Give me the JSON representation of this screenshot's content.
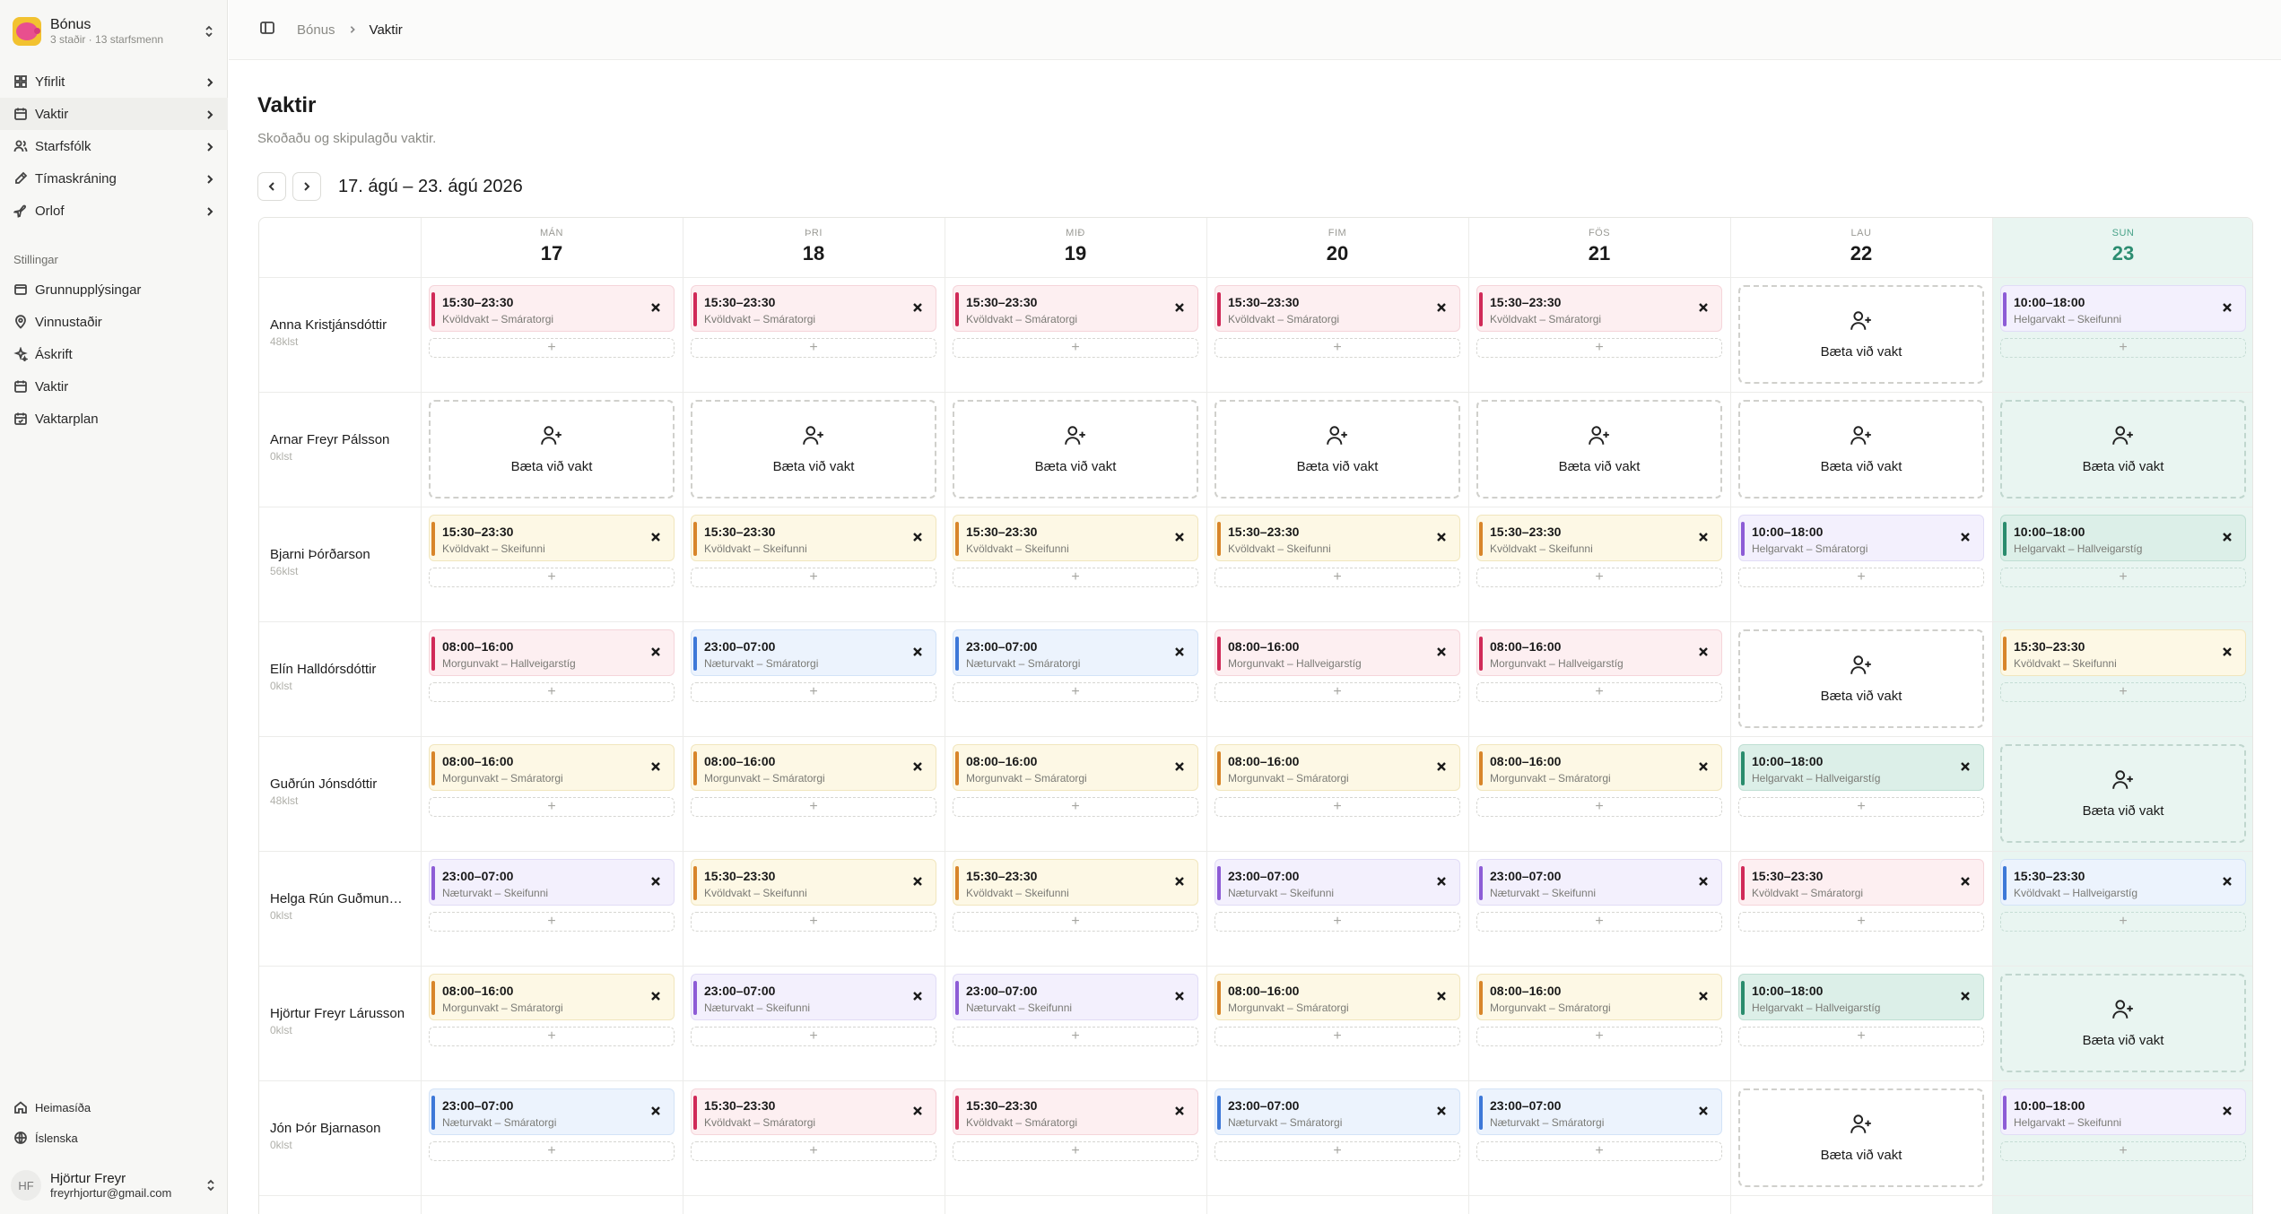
{
  "brand": {
    "name": "Bónus",
    "sub": "3 staðir · 13 starfsmenn"
  },
  "nav": [
    {
      "label": "Yfirlit",
      "icon": "grid-icon",
      "active": false
    },
    {
      "label": "Vaktir",
      "icon": "calendar-icon",
      "active": true
    },
    {
      "label": "Starfsfólk",
      "icon": "users-icon",
      "active": false
    },
    {
      "label": "Tímaskráning",
      "icon": "pen-icon",
      "active": false
    },
    {
      "label": "Orlof",
      "icon": "plane-icon",
      "active": false
    }
  ],
  "settings_label": "Stillingar",
  "settings": [
    {
      "label": "Grunnupplýsingar",
      "icon": "card-icon"
    },
    {
      "label": "Vinnustaðir",
      "icon": "map-pin-icon"
    },
    {
      "label": "Áskrift",
      "icon": "sparkle-icon"
    },
    {
      "label": "Vaktir",
      "icon": "calendar-icon"
    },
    {
      "label": "Vaktarplan",
      "icon": "calendar-check-icon"
    }
  ],
  "footer": [
    {
      "label": "Heimasíða",
      "icon": "home-icon"
    },
    {
      "label": "Íslenska",
      "icon": "globe-icon"
    }
  ],
  "user": {
    "initials": "HF",
    "name": "Hjörtur Freyr",
    "email": "freyrhjortur@gmail.com"
  },
  "breadcrumb": {
    "parent": "Bónus",
    "current": "Vaktir"
  },
  "page": {
    "title": "Vaktir",
    "subtitle": "Skoðaðu og skipulagðu vaktir."
  },
  "week_label": "17. ágú – 23. ágú 2026",
  "add_label": "Bæta við vakt",
  "days": [
    {
      "name": "MÁN",
      "num": "17",
      "today": false
    },
    {
      "name": "ÞRI",
      "num": "18",
      "today": false
    },
    {
      "name": "MIÐ",
      "num": "19",
      "today": false
    },
    {
      "name": "FIM",
      "num": "20",
      "today": false
    },
    {
      "name": "FÖS",
      "num": "21",
      "today": false
    },
    {
      "name": "LAU",
      "num": "22",
      "today": false
    },
    {
      "name": "SUN",
      "num": "23",
      "today": true
    }
  ],
  "employees": [
    {
      "name": "Anna Kristjánsdóttir",
      "hours": "48klst",
      "shifts": [
        {
          "time": "15:30–23:30",
          "label": "Kvöldvakt – Smáratorgi",
          "color": "pink"
        },
        {
          "time": "15:30–23:30",
          "label": "Kvöldvakt – Smáratorgi",
          "color": "pink"
        },
        {
          "time": "15:30–23:30",
          "label": "Kvöldvakt – Smáratorgi",
          "color": "pink"
        },
        {
          "time": "15:30–23:30",
          "label": "Kvöldvakt – Smáratorgi",
          "color": "pink"
        },
        {
          "time": "15:30–23:30",
          "label": "Kvöldvakt – Smáratorgi",
          "color": "pink"
        },
        null,
        {
          "time": "10:00–18:00",
          "label": "Helgarvakt – Skeifunni",
          "color": "purple"
        }
      ]
    },
    {
      "name": "Arnar Freyr Pálsson",
      "hours": "0klst",
      "shifts": [
        null,
        null,
        null,
        null,
        null,
        null,
        null
      ]
    },
    {
      "name": "Bjarni Þórðarson",
      "hours": "56klst",
      "shifts": [
        {
          "time": "15:30–23:30",
          "label": "Kvöldvakt – Skeifunni",
          "color": "yellow"
        },
        {
          "time": "15:30–23:30",
          "label": "Kvöldvakt – Skeifunni",
          "color": "yellow"
        },
        {
          "time": "15:30–23:30",
          "label": "Kvöldvakt – Skeifunni",
          "color": "yellow"
        },
        {
          "time": "15:30–23:30",
          "label": "Kvöldvakt – Skeifunni",
          "color": "yellow"
        },
        {
          "time": "15:30–23:30",
          "label": "Kvöldvakt – Skeifunni",
          "color": "yellow"
        },
        {
          "time": "10:00–18:00",
          "label": "Helgarvakt – Smáratorgi",
          "color": "purple"
        },
        {
          "time": "10:00–18:00",
          "label": "Helgarvakt – Hallveigarstíg",
          "color": "green"
        }
      ]
    },
    {
      "name": "Elín Halldórsdóttir",
      "hours": "0klst",
      "shifts": [
        {
          "time": "08:00–16:00",
          "label": "Morgunvakt – Hallveigarstíg",
          "color": "pink"
        },
        {
          "time": "23:00–07:00",
          "label": "Næturvakt – Smáratorgi",
          "color": "blue"
        },
        {
          "time": "23:00–07:00",
          "label": "Næturvakt – Smáratorgi",
          "color": "blue"
        },
        {
          "time": "08:00–16:00",
          "label": "Morgunvakt – Hallveigarstíg",
          "color": "pink"
        },
        {
          "time": "08:00–16:00",
          "label": "Morgunvakt – Hallveigarstíg",
          "color": "pink"
        },
        null,
        {
          "time": "15:30–23:30",
          "label": "Kvöldvakt – Skeifunni",
          "color": "yellow"
        }
      ]
    },
    {
      "name": "Guðrún Jónsdóttir",
      "hours": "48klst",
      "shifts": [
        {
          "time": "08:00–16:00",
          "label": "Morgunvakt – Smáratorgi",
          "color": "yellow"
        },
        {
          "time": "08:00–16:00",
          "label": "Morgunvakt – Smáratorgi",
          "color": "yellow"
        },
        {
          "time": "08:00–16:00",
          "label": "Morgunvakt – Smáratorgi",
          "color": "yellow"
        },
        {
          "time": "08:00–16:00",
          "label": "Morgunvakt – Smáratorgi",
          "color": "yellow"
        },
        {
          "time": "08:00–16:00",
          "label": "Morgunvakt – Smáratorgi",
          "color": "yellow"
        },
        {
          "time": "10:00–18:00",
          "label": "Helgarvakt – Hallveigarstíg",
          "color": "green"
        },
        null
      ]
    },
    {
      "name": "Helga Rún Guðmundsdóttir",
      "hours": "0klst",
      "shifts": [
        {
          "time": "23:00–07:00",
          "label": "Næturvakt – Skeifunni",
          "color": "purple"
        },
        {
          "time": "15:30–23:30",
          "label": "Kvöldvakt – Skeifunni",
          "color": "yellow"
        },
        {
          "time": "15:30–23:30",
          "label": "Kvöldvakt – Skeifunni",
          "color": "yellow"
        },
        {
          "time": "23:00–07:00",
          "label": "Næturvakt – Skeifunni",
          "color": "purple"
        },
        {
          "time": "23:00–07:00",
          "label": "Næturvakt – Skeifunni",
          "color": "purple"
        },
        {
          "time": "15:30–23:30",
          "label": "Kvöldvakt – Smáratorgi",
          "color": "pink"
        },
        {
          "time": "15:30–23:30",
          "label": "Kvöldvakt – Hallveigarstíg",
          "color": "blue"
        }
      ]
    },
    {
      "name": "Hjörtur Freyr Lárusson",
      "hours": "0klst",
      "shifts": [
        {
          "time": "08:00–16:00",
          "label": "Morgunvakt – Smáratorgi",
          "color": "yellow"
        },
        {
          "time": "23:00–07:00",
          "label": "Næturvakt – Skeifunni",
          "color": "purple"
        },
        {
          "time": "23:00–07:00",
          "label": "Næturvakt – Skeifunni",
          "color": "purple"
        },
        {
          "time": "08:00–16:00",
          "label": "Morgunvakt – Smáratorgi",
          "color": "yellow"
        },
        {
          "time": "08:00–16:00",
          "label": "Morgunvakt – Smáratorgi",
          "color": "yellow"
        },
        {
          "time": "10:00–18:00",
          "label": "Helgarvakt – Hallveigarstíg",
          "color": "green"
        },
        null
      ]
    },
    {
      "name": "Jón Þór Bjarnason",
      "hours": "0klst",
      "shifts": [
        {
          "time": "23:00–07:00",
          "label": "Næturvakt – Smáratorgi",
          "color": "blue"
        },
        {
          "time": "15:30–23:30",
          "label": "Kvöldvakt – Smáratorgi",
          "color": "pink"
        },
        {
          "time": "15:30–23:30",
          "label": "Kvöldvakt – Smáratorgi",
          "color": "pink"
        },
        {
          "time": "23:00–07:00",
          "label": "Næturvakt – Smáratorgi",
          "color": "blue"
        },
        {
          "time": "23:00–07:00",
          "label": "Næturvakt – Smáratorgi",
          "color": "blue"
        },
        null,
        {
          "time": "10:00–18:00",
          "label": "Helgarvakt – Skeifunni",
          "color": "purple"
        }
      ]
    }
  ]
}
